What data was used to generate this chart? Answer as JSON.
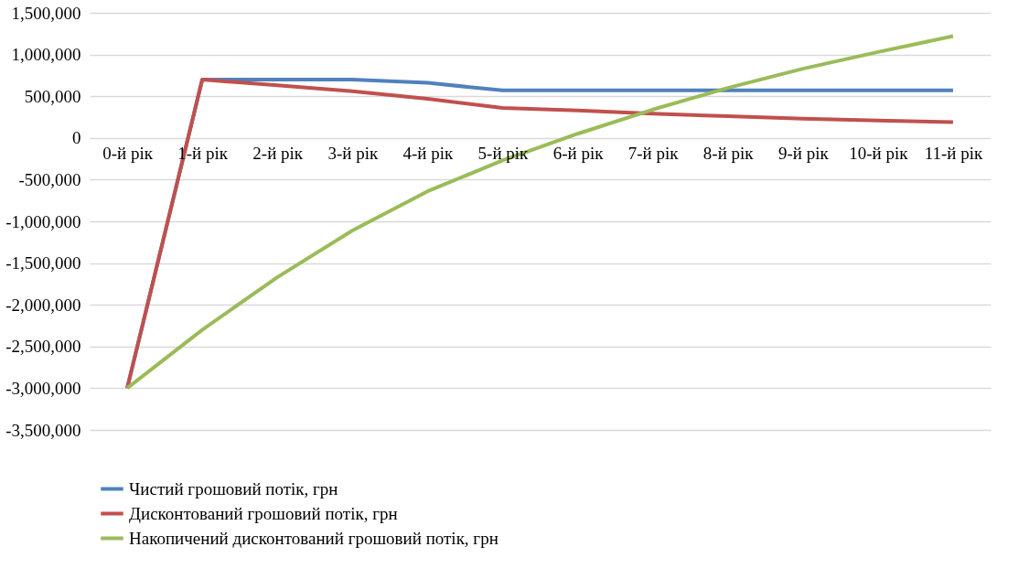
{
  "chart_data": {
    "type": "line",
    "categories": [
      "0-й рік",
      "1-й рік",
      "2-й рік",
      "3-й рік",
      "4-й рік",
      "5-й рік",
      "6-й рік",
      "7-й рік",
      "8-й рік",
      "9-й рік",
      "10-й рік",
      "11-й рік"
    ],
    "series": [
      {
        "name": "Чистий грошовий потік, грн",
        "color": "#4f81bd",
        "values": [
          -3000000,
          700000,
          700000,
          700000,
          660000,
          570000,
          570000,
          570000,
          570000,
          570000,
          570000,
          570000
        ]
      },
      {
        "name": "Дисконтований грошовий потік, грн",
        "color": "#c0504d",
        "values": [
          -3000000,
          700000,
          630000,
          560000,
          470000,
          360000,
          330000,
          290000,
          260000,
          230000,
          210000,
          190000
        ]
      },
      {
        "name": "Накопичений дисконтований грошовий потік, грн",
        "color": "#9bbb59",
        "values": [
          -3000000,
          -2300000,
          -1670000,
          -1110000,
          -640000,
          -270000,
          50000,
          340000,
          600000,
          830000,
          1030000,
          1220000
        ]
      }
    ],
    "ylim": [
      -3500000,
      1500000
    ],
    "yticks": [
      {
        "value": -3500000,
        "label": "-3,500,000"
      },
      {
        "value": -3000000,
        "label": "-3,000,000"
      },
      {
        "value": -2500000,
        "label": "-2,500,000"
      },
      {
        "value": -2000000,
        "label": "-2,000,000"
      },
      {
        "value": -1500000,
        "label": "-1,500,000"
      },
      {
        "value": -1000000,
        "label": "-1,000,000"
      },
      {
        "value": -500000,
        "label": "-500,000"
      },
      {
        "value": 0,
        "label": "0"
      },
      {
        "value": 500000,
        "label": "500,000"
      },
      {
        "value": 1000000,
        "label": "1,000,000"
      },
      {
        "value": 1500000,
        "label": "1,500,000"
      }
    ],
    "grid": "y",
    "legend": "bottom",
    "marker": "none",
    "line_style": "solid"
  }
}
